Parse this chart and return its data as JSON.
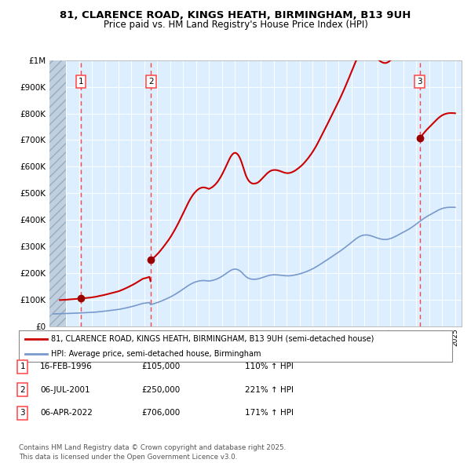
{
  "title": "81, CLARENCE ROAD, KINGS HEATH, BIRMINGHAM, B13 9UH",
  "subtitle": "Price paid vs. HM Land Registry's House Price Index (HPI)",
  "sale_dates_year": [
    1996.125,
    2001.542,
    2022.267
  ],
  "sale_prices": [
    105000,
    250000,
    706000
  ],
  "sale_labels": [
    "1",
    "2",
    "3"
  ],
  "legend_line1": "81, CLARENCE ROAD, KINGS HEATH, BIRMINGHAM, B13 9UH (semi-detached house)",
  "legend_line2": "HPI: Average price, semi-detached house, Birmingham",
  "table_rows": [
    [
      "1",
      "16-FEB-1996",
      "£105,000",
      "110% ↑ HPI"
    ],
    [
      "2",
      "06-JUL-2001",
      "£250,000",
      "221% ↑ HPI"
    ],
    [
      "3",
      "06-APR-2022",
      "£706,000",
      "171% ↑ HPI"
    ]
  ],
  "footer": "Contains HM Land Registry data © Crown copyright and database right 2025.\nThis data is licensed under the Open Government Licence v3.0.",
  "plot_bg": "#ddeeff",
  "red_line_color": "#cc0000",
  "blue_line_color": "#7799cc",
  "dashed_line_color": "#ff4444",
  "xmin": 1993.7,
  "xmax": 2025.5,
  "ymin": 0,
  "ymax": 1000000,
  "hatch_xmax": 1995.0,
  "hpi_monthly_years": [
    1994.0,
    1994.083,
    1994.167,
    1994.25,
    1994.333,
    1994.417,
    1994.5,
    1994.583,
    1994.667,
    1994.75,
    1994.833,
    1994.917,
    1995.0,
    1995.083,
    1995.167,
    1995.25,
    1995.333,
    1995.417,
    1995.5,
    1995.583,
    1995.667,
    1995.75,
    1995.833,
    1995.917,
    1996.0,
    1996.083,
    1996.167,
    1996.25,
    1996.333,
    1996.417,
    1996.5,
    1996.583,
    1996.667,
    1996.75,
    1996.833,
    1996.917,
    1997.0,
    1997.083,
    1997.167,
    1997.25,
    1997.333,
    1997.417,
    1997.5,
    1997.583,
    1997.667,
    1997.75,
    1997.833,
    1997.917,
    1998.0,
    1998.083,
    1998.167,
    1998.25,
    1998.333,
    1998.417,
    1998.5,
    1998.583,
    1998.667,
    1998.75,
    1998.833,
    1998.917,
    1999.0,
    1999.083,
    1999.167,
    1999.25,
    1999.333,
    1999.417,
    1999.5,
    1999.583,
    1999.667,
    1999.75,
    1999.833,
    1999.917,
    2000.0,
    2000.083,
    2000.167,
    2000.25,
    2000.333,
    2000.417,
    2000.5,
    2000.583,
    2000.667,
    2000.75,
    2000.833,
    2000.917,
    2001.0,
    2001.083,
    2001.167,
    2001.25,
    2001.333,
    2001.417,
    2001.5,
    2001.583,
    2001.667,
    2001.75,
    2001.833,
    2001.917,
    2002.0,
    2002.083,
    2002.167,
    2002.25,
    2002.333,
    2002.417,
    2002.5,
    2002.583,
    2002.667,
    2002.75,
    2002.833,
    2002.917,
    2003.0,
    2003.083,
    2003.167,
    2003.25,
    2003.333,
    2003.417,
    2003.5,
    2003.583,
    2003.667,
    2003.75,
    2003.833,
    2003.917,
    2004.0,
    2004.083,
    2004.167,
    2004.25,
    2004.333,
    2004.417,
    2004.5,
    2004.583,
    2004.667,
    2004.75,
    2004.833,
    2004.917,
    2005.0,
    2005.083,
    2005.167,
    2005.25,
    2005.333,
    2005.417,
    2005.5,
    2005.583,
    2005.667,
    2005.75,
    2005.833,
    2005.917,
    2006.0,
    2006.083,
    2006.167,
    2006.25,
    2006.333,
    2006.417,
    2006.5,
    2006.583,
    2006.667,
    2006.75,
    2006.833,
    2006.917,
    2007.0,
    2007.083,
    2007.167,
    2007.25,
    2007.333,
    2007.417,
    2007.5,
    2007.583,
    2007.667,
    2007.75,
    2007.833,
    2007.917,
    2008.0,
    2008.083,
    2008.167,
    2008.25,
    2008.333,
    2008.417,
    2008.5,
    2008.583,
    2008.667,
    2008.75,
    2008.833,
    2008.917,
    2009.0,
    2009.083,
    2009.167,
    2009.25,
    2009.333,
    2009.417,
    2009.5,
    2009.583,
    2009.667,
    2009.75,
    2009.833,
    2009.917,
    2010.0,
    2010.083,
    2010.167,
    2010.25,
    2010.333,
    2010.417,
    2010.5,
    2010.583,
    2010.667,
    2010.75,
    2010.833,
    2010.917,
    2011.0,
    2011.083,
    2011.167,
    2011.25,
    2011.333,
    2011.417,
    2011.5,
    2011.583,
    2011.667,
    2011.75,
    2011.833,
    2011.917,
    2012.0,
    2012.083,
    2012.167,
    2012.25,
    2012.333,
    2012.417,
    2012.5,
    2012.583,
    2012.667,
    2012.75,
    2012.833,
    2012.917,
    2013.0,
    2013.083,
    2013.167,
    2013.25,
    2013.333,
    2013.417,
    2013.5,
    2013.583,
    2013.667,
    2013.75,
    2013.833,
    2013.917,
    2014.0,
    2014.083,
    2014.167,
    2014.25,
    2014.333,
    2014.417,
    2014.5,
    2014.583,
    2014.667,
    2014.75,
    2014.833,
    2014.917,
    2015.0,
    2015.083,
    2015.167,
    2015.25,
    2015.333,
    2015.417,
    2015.5,
    2015.583,
    2015.667,
    2015.75,
    2015.833,
    2015.917,
    2016.0,
    2016.083,
    2016.167,
    2016.25,
    2016.333,
    2016.417,
    2016.5,
    2016.583,
    2016.667,
    2016.75,
    2016.833,
    2016.917,
    2017.0,
    2017.083,
    2017.167,
    2017.25,
    2017.333,
    2017.417,
    2017.5,
    2017.583,
    2017.667,
    2017.75,
    2017.833,
    2017.917,
    2018.0,
    2018.083,
    2018.167,
    2018.25,
    2018.333,
    2018.417,
    2018.5,
    2018.583,
    2018.667,
    2018.75,
    2018.833,
    2018.917,
    2019.0,
    2019.083,
    2019.167,
    2019.25,
    2019.333,
    2019.417,
    2019.5,
    2019.583,
    2019.667,
    2019.75,
    2019.833,
    2019.917,
    2020.0,
    2020.083,
    2020.167,
    2020.25,
    2020.333,
    2020.417,
    2020.5,
    2020.583,
    2020.667,
    2020.75,
    2020.833,
    2020.917,
    2021.0,
    2021.083,
    2021.167,
    2021.25,
    2021.333,
    2021.417,
    2021.5,
    2021.583,
    2021.667,
    2021.75,
    2021.833,
    2021.917,
    2022.0,
    2022.083,
    2022.167,
    2022.25,
    2022.333,
    2022.417,
    2022.5,
    2022.583,
    2022.667,
    2022.75,
    2022.833,
    2022.917,
    2023.0,
    2023.083,
    2023.167,
    2023.25,
    2023.333,
    2023.417,
    2023.5,
    2023.583,
    2023.667,
    2023.75,
    2023.833,
    2023.917,
    2024.0,
    2024.083,
    2024.167,
    2024.25,
    2024.333,
    2024.417,
    2024.5,
    2024.583,
    2024.667,
    2024.75,
    2024.833,
    2024.917,
    2025.0
  ],
  "hpi_base_values": [
    47000,
    47200,
    47100,
    47300,
    47500,
    47600,
    47800,
    47900,
    48000,
    48100,
    48200,
    48400,
    48500,
    48600,
    48800,
    49000,
    49100,
    49300,
    49400,
    49500,
    49700,
    49800,
    50000,
    50200,
    50400,
    50600,
    50800,
    51000,
    51200,
    51400,
    51500,
    51700,
    51900,
    52100,
    52300,
    52500,
    52800,
    53100,
    53400,
    53700,
    54100,
    54500,
    55000,
    55400,
    55800,
    56200,
    56600,
    57000,
    57500,
    58000,
    58500,
    59000,
    59500,
    60000,
    60500,
    61000,
    61500,
    62000,
    62500,
    63000,
    63500,
    64200,
    65000,
    65800,
    66600,
    67400,
    68300,
    69200,
    70100,
    71000,
    72000,
    73000,
    74000,
    75000,
    76000,
    77100,
    78200,
    79400,
    80600,
    81800,
    83000,
    84200,
    85400,
    86600,
    87000,
    87500,
    88000,
    88600,
    89200,
    89800,
    82000,
    83000,
    84000,
    85200,
    86500,
    87800,
    89200,
    90600,
    92100,
    93700,
    95300,
    97000,
    98700,
    100500,
    102300,
    104100,
    105900,
    107800,
    109800,
    111900,
    114100,
    116400,
    118700,
    121100,
    123600,
    126100,
    128700,
    131400,
    134100,
    136800,
    139600,
    142400,
    145200,
    148000,
    150800,
    153500,
    156000,
    158400,
    160600,
    162600,
    164400,
    166000,
    167400,
    168700,
    169800,
    170700,
    171400,
    171900,
    172200,
    172300,
    172200,
    171900,
    171500,
    171000,
    170500,
    171000,
    171700,
    172500,
    173500,
    174700,
    176000,
    177500,
    179200,
    181100,
    183200,
    185400,
    187800,
    190400,
    193100,
    195900,
    198800,
    201700,
    204600,
    207400,
    209900,
    212000,
    213600,
    214700,
    215200,
    215000,
    214200,
    212800,
    210700,
    208000,
    204600,
    200700,
    196400,
    192100,
    188200,
    185000,
    182500,
    180500,
    179000,
    178000,
    177300,
    177000,
    177000,
    177200,
    177500,
    178100,
    179000,
    180100,
    181400,
    182800,
    184200,
    185700,
    187100,
    188500,
    189800,
    190900,
    191900,
    192700,
    193300,
    193700,
    193900,
    194000,
    193900,
    193700,
    193400,
    193000,
    192500,
    192000,
    191500,
    191000,
    190600,
    190300,
    190100,
    190000,
    190100,
    190300,
    190700,
    191200,
    191800,
    192500,
    193300,
    194200,
    195200,
    196200,
    197300,
    198400,
    199600,
    200900,
    202300,
    203800,
    205400,
    207000,
    208700,
    210500,
    212300,
    214200,
    216200,
    218300,
    220500,
    222800,
    225200,
    227700,
    230300,
    232900,
    235500,
    238100,
    240700,
    243300,
    246000,
    248700,
    251400,
    254100,
    256800,
    259500,
    262200,
    264900,
    267600,
    270300,
    273000,
    275700,
    278500,
    281300,
    284200,
    287100,
    290100,
    293100,
    296200,
    299300,
    302500,
    305700,
    308900,
    312200,
    315500,
    318800,
    322100,
    325300,
    328400,
    331300,
    334000,
    336400,
    338500,
    340200,
    341600,
    342600,
    343200,
    343500,
    343500,
    343200,
    342600,
    341700,
    340600,
    339300,
    337900,
    336400,
    334900,
    333400,
    332000,
    330700,
    329500,
    328500,
    327700,
    327100,
    326700,
    326500,
    326600,
    327000,
    327700,
    328600,
    329800,
    331200,
    332800,
    334600,
    336600,
    338600,
    340700,
    342900,
    345100,
    347300,
    349500,
    351600,
    353700,
    355800,
    357900,
    360100,
    362400,
    364800,
    367300,
    369900,
    372600,
    375400,
    378300,
    381300,
    384400,
    387500,
    390600,
    393700,
    396700,
    399700,
    402600,
    405400,
    408100,
    410700,
    413200,
    415500,
    417800,
    420100,
    422400,
    424700,
    427000,
    429300,
    431600,
    433800,
    436000,
    438000,
    439800,
    441400,
    442800,
    444000,
    445000,
    445800,
    446500,
    447000,
    447300,
    447500,
    447600,
    447600,
    447500,
    447400,
    447200
  ]
}
